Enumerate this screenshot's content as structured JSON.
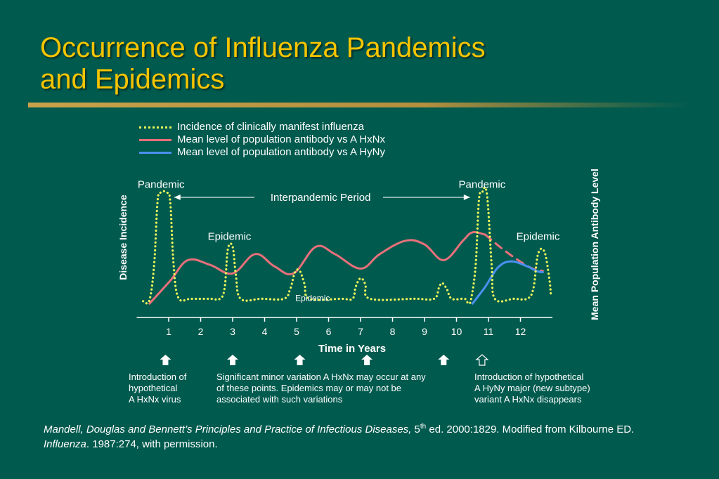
{
  "slide": {
    "title_line1": "Occurrence of Influenza Pandemics",
    "title_line2": "and Epidemics"
  },
  "colors": {
    "background": "#005a4e",
    "title": "#f5c400",
    "incidence": "#e8f45a",
    "antibody_hxnx": "#e8707a",
    "antibody_hyny": "#4a90f0"
  },
  "chart_data": {
    "type": "line",
    "title": "",
    "xlabel": "Time in Years",
    "ylabel_left": "Disease Incidence",
    "ylabel_right": "Mean Population Antibody Level",
    "x_ticks": [
      "1",
      "2",
      "3",
      "4",
      "5",
      "6",
      "7",
      "8",
      "9",
      "10",
      "11",
      "12"
    ],
    "xlim": [
      0.1,
      13
    ],
    "ylim": [
      0,
      10
    ],
    "grid": false,
    "legend_position": "top-left",
    "series": [
      {
        "name": "Incidence of clinically manifest influenza",
        "style": "dotted",
        "color": "#e8f45a",
        "points": [
          [
            0.2,
            0.3
          ],
          [
            0.4,
            0.4
          ],
          [
            0.55,
            3.5
          ],
          [
            0.65,
            8.5
          ],
          [
            0.75,
            9.3
          ],
          [
            0.95,
            9.3
          ],
          [
            1.05,
            8.5
          ],
          [
            1.15,
            3.5
          ],
          [
            1.3,
            0.6
          ],
          [
            1.7,
            0.5
          ],
          [
            2.3,
            0.5
          ],
          [
            2.6,
            0.5
          ],
          [
            2.75,
            1.4
          ],
          [
            2.85,
            4.6
          ],
          [
            3.0,
            4.8
          ],
          [
            3.1,
            2.5
          ],
          [
            3.25,
            0.5
          ],
          [
            3.9,
            0.5
          ],
          [
            4.6,
            0.5
          ],
          [
            4.8,
            1.3
          ],
          [
            4.95,
            2.7
          ],
          [
            5.1,
            2.8
          ],
          [
            5.25,
            1.7
          ],
          [
            5.4,
            0.5
          ],
          [
            6.4,
            0.5
          ],
          [
            6.75,
            0.5
          ],
          [
            6.85,
            1.5
          ],
          [
            7.0,
            2.2
          ],
          [
            7.15,
            1.7
          ],
          [
            7.3,
            0.5
          ],
          [
            8.7,
            0.5
          ],
          [
            9.3,
            0.5
          ],
          [
            9.45,
            1.4
          ],
          [
            9.55,
            1.8
          ],
          [
            9.7,
            1.3
          ],
          [
            9.85,
            0.5
          ],
          [
            10.25,
            0.5
          ],
          [
            10.35,
            0.2
          ],
          [
            10.45,
            0.4
          ],
          [
            10.6,
            3.3
          ],
          [
            10.7,
            8.6
          ],
          [
            10.8,
            9.3
          ],
          [
            10.95,
            9.2
          ],
          [
            11.1,
            3.3
          ],
          [
            11.2,
            0.5
          ],
          [
            11.8,
            0.5
          ],
          [
            12.2,
            0.5
          ],
          [
            12.4,
            1.3
          ],
          [
            12.55,
            4.2
          ],
          [
            12.75,
            4.4
          ],
          [
            12.9,
            2.2
          ],
          [
            12.95,
            0.9
          ]
        ]
      },
      {
        "name": "Mean level of population antibody vs A HxNx",
        "style": "solid",
        "color": "#e8707a",
        "points": [
          [
            0.4,
            0.1
          ],
          [
            1.05,
            2.0
          ],
          [
            1.6,
            3.7
          ],
          [
            2.3,
            3.3
          ],
          [
            3.0,
            2.6
          ],
          [
            3.7,
            4.2
          ],
          [
            4.3,
            3.2
          ],
          [
            4.9,
            2.6
          ],
          [
            5.6,
            4.8
          ],
          [
            6.2,
            4.2
          ],
          [
            7.0,
            3.0
          ],
          [
            7.6,
            4.2
          ],
          [
            8.4,
            5.3
          ],
          [
            9.0,
            5.0
          ],
          [
            9.6,
            3.7
          ],
          [
            10.2,
            5.3
          ],
          [
            10.5,
            6.0
          ],
          [
            10.9,
            5.8
          ]
        ]
      },
      {
        "name": "Mean level of population antibody vs A HxNx (declining)",
        "style": "dashed",
        "color": "#e8707a",
        "points": [
          [
            10.9,
            5.8
          ],
          [
            11.6,
            4.3
          ],
          [
            12.3,
            3.1
          ],
          [
            12.7,
            2.8
          ]
        ]
      },
      {
        "name": "Mean level of population antibody vs A HyNy",
        "style": "solid",
        "color": "#4a90f0",
        "points": [
          [
            10.5,
            0.1
          ],
          [
            10.9,
            1.5
          ],
          [
            11.3,
            3.1
          ],
          [
            11.7,
            3.6
          ],
          [
            12.2,
            3.2
          ],
          [
            12.5,
            2.8
          ],
          [
            12.7,
            2.7
          ]
        ]
      }
    ],
    "legend": [
      "Incidence of clinically manifest influenza",
      "Mean level of population antibody vs A HxNx",
      "Mean level of population antibody vs A HyNy"
    ],
    "annotations": [
      {
        "text": "Pandemic",
        "x": 0.85,
        "y": 9.9
      },
      {
        "text": "Pandemic",
        "x": 10.8,
        "y": 9.9
      },
      {
        "text": "Interpandemic Period",
        "x": 5.75,
        "y": 8.9
      },
      {
        "text": "Epidemic",
        "x": 2.9,
        "y": 5.5
      },
      {
        "text": "Epidemic",
        "x": 12.55,
        "y": 5.5
      },
      {
        "text": "Epidemic",
        "x": 5.5,
        "y": 0.6
      }
    ],
    "period_arrow": {
      "from": 0.95,
      "to": 10.6,
      "y": 8.9
    }
  },
  "event_markers": [
    {
      "x": 0.9,
      "style": "filled"
    },
    {
      "x": 3.0,
      "style": "filled"
    },
    {
      "x": 5.1,
      "style": "filled"
    },
    {
      "x": 7.2,
      "style": "filled"
    },
    {
      "x": 9.6,
      "style": "filled"
    },
    {
      "x": 10.8,
      "style": "outline"
    }
  ],
  "notes": {
    "intro_hxnx": "Introduction of\nhypothetical\nA HxNx virus",
    "minor_variation": "Significant minor variation A HxNx may occur at any\nof these points. Epidemics may or may not be\nassociated with such variations",
    "intro_hyny": "Introduction of hypothetical\nA HyNy major (new subtype)\nvariant A HxNx disappears"
  },
  "citation": {
    "part1_italic": "Mandell, Douglas and Bennett’s Principles and Practice of Infectious Diseases,",
    "part2": " 5",
    "sup": "th",
    "part3": " ed. 2000:1829. Modified from Kilbourne ED. ",
    "part4_italic": "Influenza",
    "part5": ". 1987:274, with permission."
  }
}
